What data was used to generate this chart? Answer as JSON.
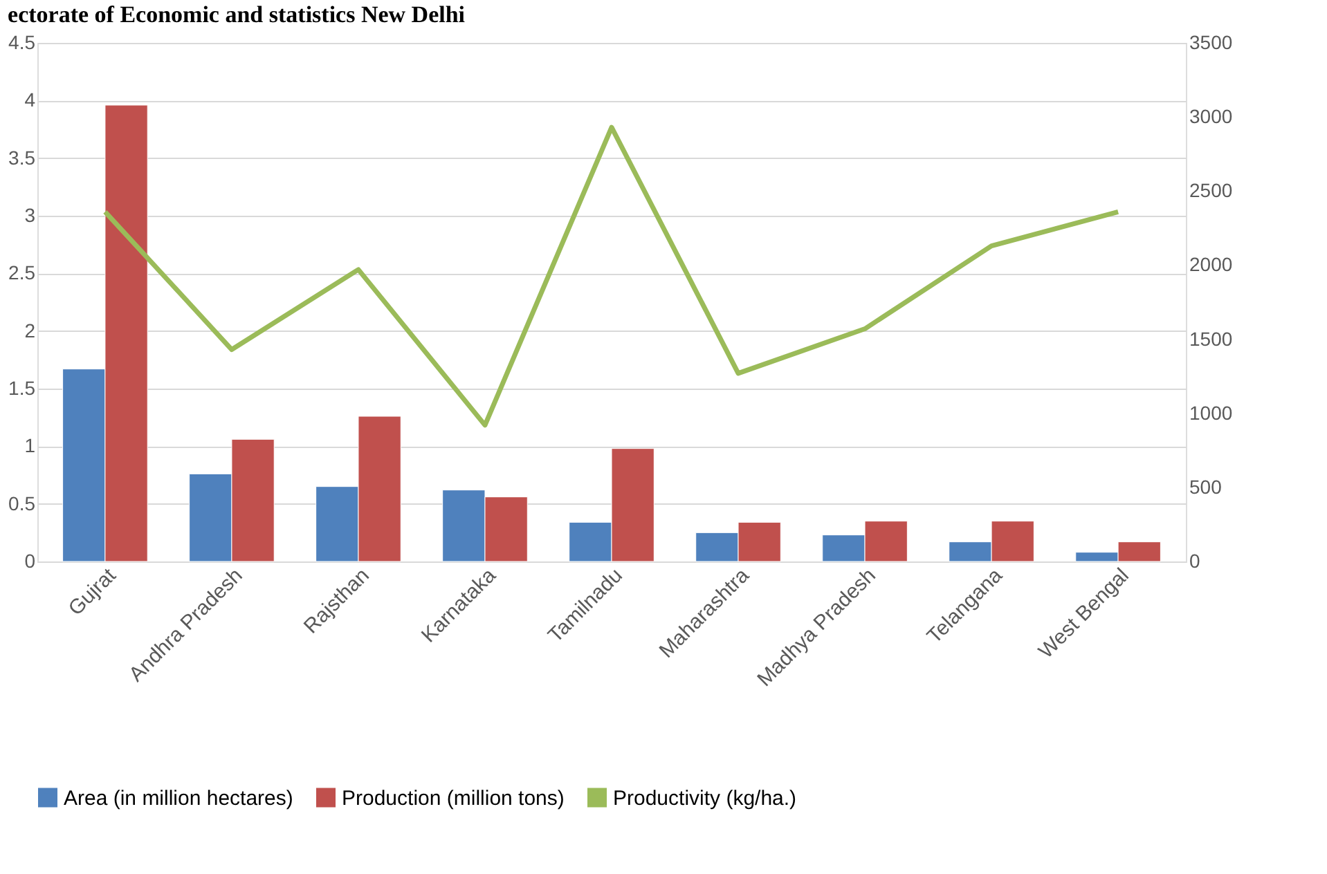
{
  "chart_data": {
    "type": "bar",
    "title": "ectorate of Economic and statistics New Delhi",
    "categories": [
      "Gujrat",
      "Andhra Pradesh",
      "Rajsthan",
      "Karnataka",
      "Tamilnadu",
      "Maharashtra",
      "Madhya Pradesh",
      "Telangana",
      "West Bengal"
    ],
    "series": [
      {
        "name": "Area (in million hectares)",
        "color": "#4f81bd",
        "values": [
          1.67,
          0.76,
          0.65,
          0.62,
          0.34,
          0.25,
          0.23,
          0.17,
          0.08
        ]
      },
      {
        "name": "Production (million tons)",
        "color": "#c0504d",
        "values": [
          3.96,
          1.06,
          1.26,
          0.56,
          0.98,
          0.34,
          0.35,
          0.35,
          0.17
        ]
      },
      {
        "name": "Productivity (kg/ha.)",
        "color": "#9bbb59",
        "type": "line",
        "axis": "y2",
        "values": [
          2360,
          1430,
          1970,
          920,
          2930,
          1270,
          1570,
          2130,
          2360
        ]
      }
    ],
    "ylim": [
      0,
      4.5
    ],
    "yticks": [
      0,
      0.5,
      1,
      1.5,
      2,
      2.5,
      3,
      3.5,
      4,
      4.5
    ],
    "y2lim": [
      0,
      3500
    ],
    "y2ticks": [
      0,
      500,
      1000,
      1500,
      2000,
      2500,
      3000,
      3500
    ],
    "grid": "y",
    "legend": "bottom",
    "marker": "none",
    "line_style": "solid"
  }
}
